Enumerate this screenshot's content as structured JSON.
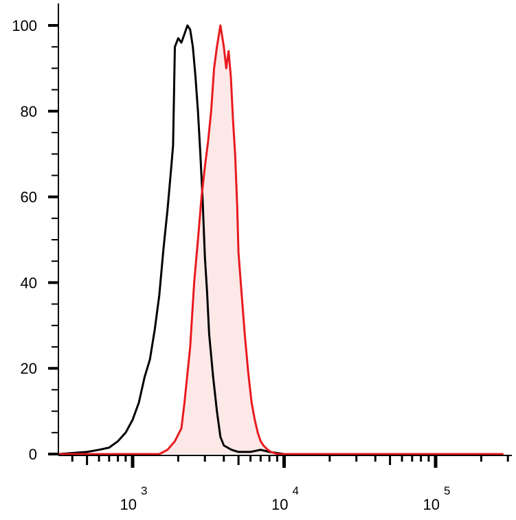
{
  "chart_data": {
    "type": "area",
    "xscale": "log",
    "xlim": [
      300,
      280000
    ],
    "ylim": [
      0,
      104
    ],
    "grid": false,
    "legend": "none",
    "y_ticks": [
      {
        "value": 0,
        "label": "0"
      },
      {
        "value": 20,
        "label": "20"
      },
      {
        "value": 40,
        "label": "40"
      },
      {
        "value": 60,
        "label": "60"
      },
      {
        "value": 80,
        "label": "80"
      },
      {
        "value": 100,
        "label": "100"
      }
    ],
    "x_ticks": [
      {
        "value": 1000,
        "base": "10",
        "exponent": "3"
      },
      {
        "value": 10000,
        "base": "10",
        "exponent": "4"
      },
      {
        "value": 100000,
        "base": "10",
        "exponent": "5"
      }
    ],
    "series": [
      {
        "color": "#000000",
        "fill": "none",
        "x": [
          300,
          500,
          600,
          700,
          800,
          900,
          1000,
          1100,
          1200,
          1300,
          1400,
          1500,
          1600,
          1700,
          1800,
          1850,
          1900,
          2000,
          2100,
          2200,
          2300,
          2400,
          2500,
          2600,
          2700,
          2800,
          2900,
          3000,
          3100,
          3200,
          3400,
          3600,
          3800,
          4000,
          4500,
          5000,
          6000,
          7000,
          8000,
          10000,
          280000
        ],
        "y": [
          0,
          0.5,
          1,
          1.5,
          3,
          5,
          8,
          12,
          18,
          22,
          29,
          37,
          48,
          57,
          67,
          72,
          95,
          97,
          96,
          98,
          100,
          99,
          95,
          88,
          80,
          70,
          59,
          46,
          38,
          28,
          18,
          10,
          4,
          2,
          1,
          0.5,
          0.5,
          1,
          0.5,
          0,
          0
        ]
      },
      {
        "color": "#e8191e",
        "fill": "#fde8e8",
        "x": [
          300,
          1500,
          1700,
          1900,
          2100,
          2200,
          2400,
          2550,
          2700,
          2850,
          3000,
          3150,
          3300,
          3450,
          3600,
          3800,
          4000,
          4150,
          4300,
          4450,
          4600,
          4750,
          4900,
          5000,
          5200,
          5500,
          5800,
          6100,
          6400,
          6700,
          7000,
          7300,
          7800,
          8200,
          9000,
          280000
        ],
        "y": [
          0,
          0,
          1,
          3,
          6,
          12,
          25,
          40,
          50,
          60,
          67,
          73,
          80,
          90,
          95,
          100,
          95,
          90,
          94,
          88,
          78,
          70,
          58,
          47,
          39,
          28,
          19,
          12,
          8,
          5,
          3,
          2,
          1,
          0.5,
          0,
          0
        ]
      }
    ]
  }
}
